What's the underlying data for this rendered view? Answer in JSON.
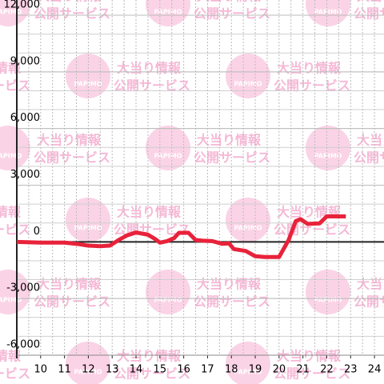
{
  "chart_data": {
    "type": "line",
    "x": [
      9.0,
      10,
      11,
      11.6,
      12,
      12.5,
      12.9,
      13.3,
      13.6,
      14,
      14.5,
      14.8,
      15,
      15.3,
      15.6,
      15.8,
      16.2,
      16.5,
      16.8,
      17.2,
      17.6,
      17.9,
      18.1,
      18.6,
      19,
      19.4,
      20.0,
      20.4,
      20.7,
      20.9,
      21.2,
      21.7,
      22.0,
      22.8
    ],
    "series": [
      {
        "color": "#e8223a",
        "values": [
          0,
          -40,
          -40,
          -120,
          -200,
          -230,
          -200,
          120,
          330,
          500,
          380,
          150,
          -40,
          40,
          200,
          480,
          480,
          100,
          60,
          40,
          -100,
          -80,
          -380,
          -480,
          -760,
          -800,
          -800,
          100,
          1100,
          1200,
          950,
          980,
          1350,
          1350
        ]
      }
    ],
    "xlim": [
      9,
      24.4
    ],
    "xticks": [
      10,
      11,
      12,
      13,
      14,
      15,
      16,
      17,
      18,
      19,
      20,
      21,
      22,
      23,
      24
    ],
    "ylim": [
      -6000,
      12000
    ],
    "yticks": [
      {
        "value": -6000,
        "label": "-6,000"
      },
      {
        "value": -3000,
        "label": "-3,000"
      },
      0,
      {
        "value": 3000,
        "label": "3,000"
      },
      {
        "value": 6000,
        "label": "6,000"
      },
      {
        "value": 9000,
        "label": "9,000"
      },
      {
        "value": 12000,
        "label": "12,000"
      }
    ],
    "grid": true,
    "watermark": {
      "line1": "大当り情報",
      "line2": "公開サービス",
      "logo": "PAPIMO"
    }
  }
}
